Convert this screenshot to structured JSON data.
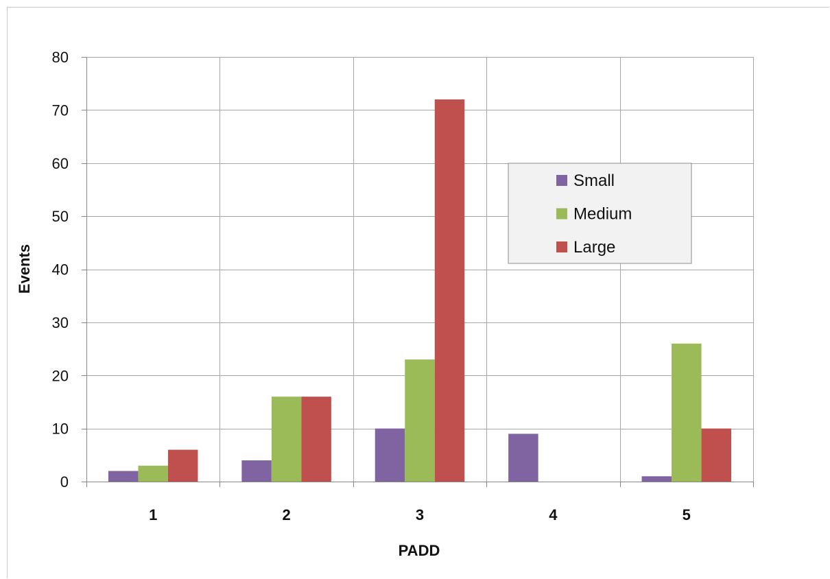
{
  "chart_data": {
    "type": "bar",
    "title": "",
    "xlabel": "PADD",
    "ylabel": "Events",
    "categories": [
      "1",
      "2",
      "3",
      "4",
      "5"
    ],
    "ylim": [
      0,
      80
    ],
    "yticks": [
      0,
      10,
      20,
      30,
      40,
      50,
      60,
      70,
      80
    ],
    "grid": true,
    "legend_position": "center-right",
    "series": [
      {
        "name": "Small",
        "color": "#8064a2",
        "values": [
          2,
          4,
          10,
          9,
          1
        ]
      },
      {
        "name": "Medium",
        "color": "#9bbb59",
        "values": [
          3,
          16,
          23,
          0,
          26
        ]
      },
      {
        "name": "Large",
        "color": "#c0504d",
        "values": [
          6,
          16,
          72,
          0,
          10
        ]
      }
    ]
  }
}
